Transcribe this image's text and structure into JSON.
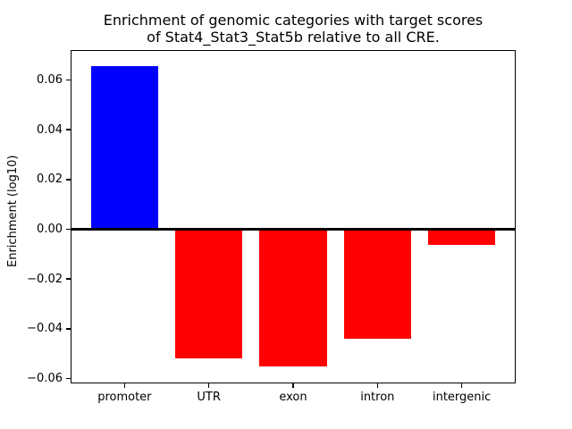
{
  "title": "Enrichment of genomic categories with target scores\nof Stat4_Stat3_Stat5b relative to all CRE.",
  "ylabel": "Enrichment (log10)",
  "chart_data": {
    "type": "bar",
    "title": "Enrichment of genomic categories with target scores of Stat4_Stat3_Stat5b relative to all CRE.",
    "xlabel": "",
    "ylabel": "Enrichment (log10)",
    "categories": [
      "promoter",
      "UTR",
      "exon",
      "intron",
      "intergenic"
    ],
    "values": [
      0.0657,
      -0.0518,
      -0.0552,
      -0.0441,
      -0.0065
    ],
    "ylim": [
      -0.062,
      0.072
    ],
    "yticks": [
      0.06,
      0.04,
      0.02,
      0.0,
      -0.02,
      -0.04,
      -0.06
    ],
    "positive_color": "#0000ff",
    "negative_color": "#ff0000",
    "zero_line": true,
    "grid": false,
    "legend": null
  }
}
